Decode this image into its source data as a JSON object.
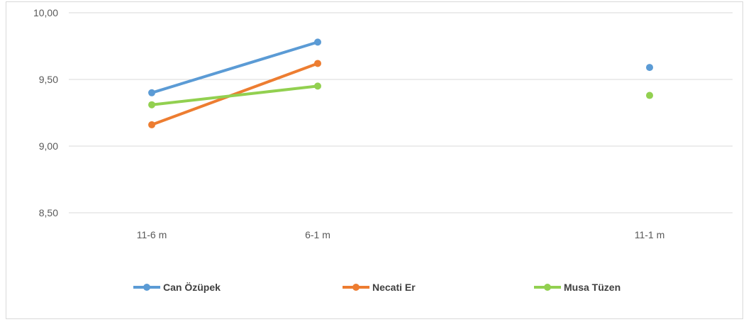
{
  "chart_data": {
    "type": "line",
    "categories": [
      "11-6 m",
      "6-1 m",
      "",
      "11-1 m"
    ],
    "series": [
      {
        "name": "Can Özüpek",
        "color": "#5b9bd5",
        "values": [
          9.4,
          9.78,
          null,
          9.59
        ]
      },
      {
        "name": "Necati Er",
        "color": "#ed7d31",
        "values": [
          9.16,
          9.62,
          null,
          null
        ]
      },
      {
        "name": "Musa Tüzen",
        "color": "#92d050",
        "values": [
          9.31,
          9.45,
          null,
          9.38
        ]
      }
    ],
    "yticks": [
      "10,00",
      "9,50",
      "9,00",
      "8,50"
    ],
    "ylim": [
      8.5,
      10.0
    ],
    "grid": true,
    "legend": "bottom",
    "title": "",
    "xlabel": "",
    "ylabel": ""
  }
}
